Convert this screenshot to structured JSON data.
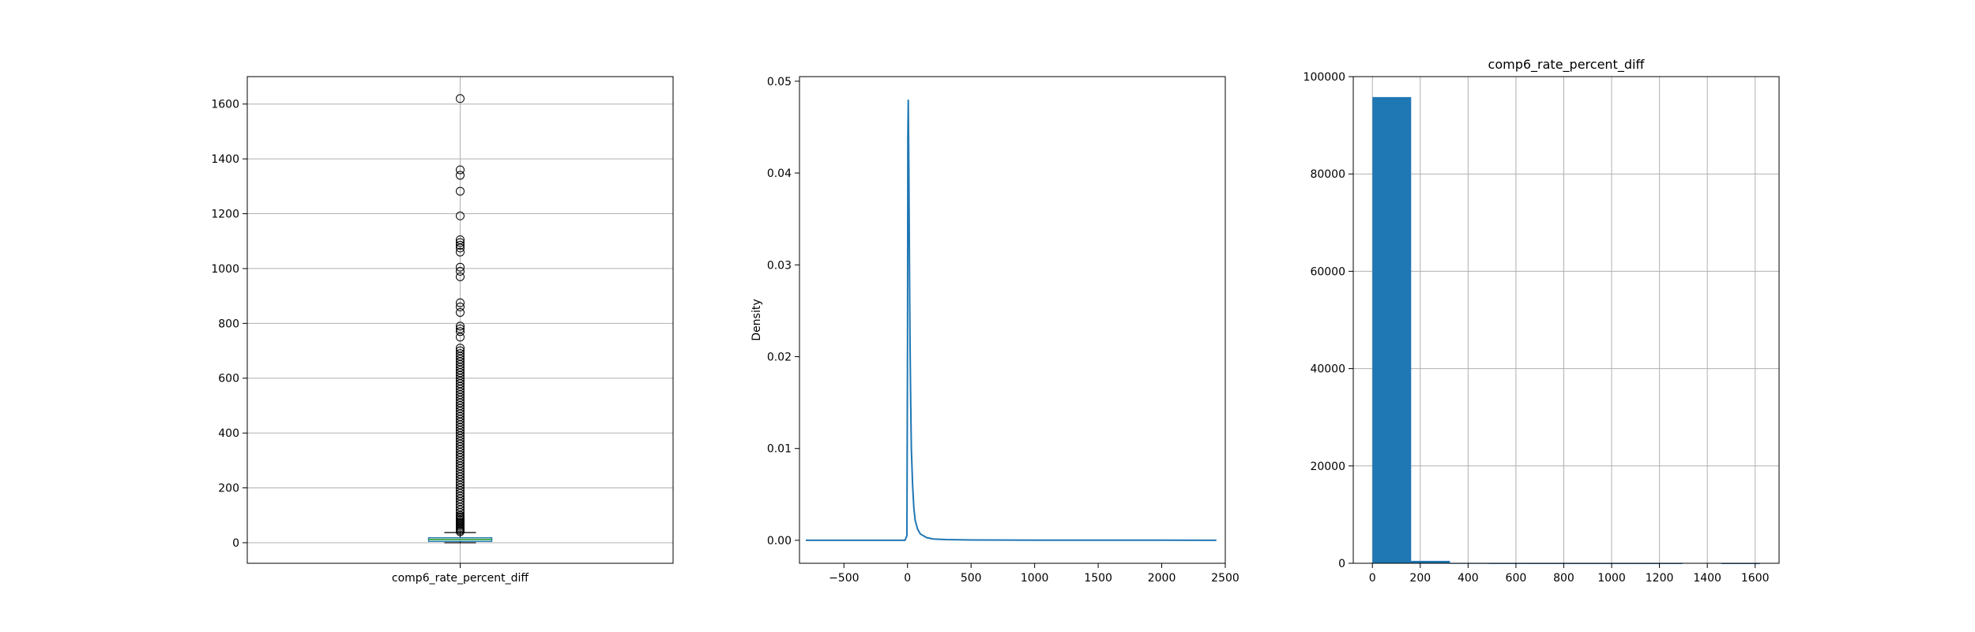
{
  "chart_data": [
    {
      "type": "box",
      "title": "",
      "xlabel": "",
      "ylabel": "",
      "categories": [
        "comp6_rate_percent_diff"
      ],
      "ylim": [
        -75,
        1700
      ],
      "yticks": [
        0,
        200,
        400,
        600,
        800,
        1000,
        1200,
        1400,
        1600
      ],
      "grid": true,
      "box": {
        "q1": 5,
        "median": 12,
        "q3": 18,
        "whisker_low": 0,
        "whisker_high": 37
      },
      "outliers": [
        1620,
        1360,
        1340,
        1282,
        1192,
        1105,
        1095,
        1085,
        1075,
        1060,
        1005,
        990,
        970,
        875,
        860,
        840,
        790,
        780,
        770,
        750,
        710,
        700,
        690,
        680,
        670,
        660,
        650,
        640,
        630,
        620,
        610,
        600,
        590,
        580,
        570,
        560,
        550,
        540,
        530,
        520,
        510,
        500,
        490,
        480,
        470,
        460,
        450,
        440,
        430,
        420,
        410,
        400,
        390,
        380,
        370,
        360,
        350,
        340,
        330,
        320,
        310,
        300,
        290,
        280,
        270,
        260,
        250,
        240,
        230,
        220,
        210,
        200,
        190,
        180,
        170,
        160,
        150,
        140,
        130,
        120,
        110,
        100,
        95,
        90,
        85,
        80,
        75,
        70,
        65,
        60,
        55,
        50,
        45,
        40
      ]
    },
    {
      "type": "line",
      "title": "",
      "xlabel": "",
      "ylabel": "Density",
      "xlim": [
        -850,
        2500
      ],
      "ylim": [
        -0.0025,
        0.0505
      ],
      "xticks": [
        -500,
        0,
        500,
        1000,
        1500,
        2000,
        2500
      ],
      "yticks": [
        0.0,
        0.01,
        0.02,
        0.03,
        0.04,
        0.05
      ],
      "ytick_labels": [
        "0.00",
        "0.01",
        "0.02",
        "0.03",
        "0.04",
        "0.05"
      ],
      "grid": false,
      "series": [
        {
          "color": "#1f77b4",
          "x": [
            -800,
            -100,
            -20,
            -5,
            0,
            3,
            6,
            10,
            15,
            20,
            25,
            30,
            40,
            50,
            60,
            80,
            100,
            150,
            200,
            300,
            500,
            1000,
            1500,
            2000,
            2430
          ],
          "y": [
            0.0,
            0.0,
            0.0,
            0.0005,
            0.022,
            0.044,
            0.048,
            0.041,
            0.03,
            0.021,
            0.015,
            0.01,
            0.006,
            0.0035,
            0.0022,
            0.0012,
            0.0007,
            0.0003,
            0.00015,
            8e-05,
            4e-05,
            2e-05,
            1e-05,
            1e-05,
            0.0
          ]
        }
      ]
    },
    {
      "type": "bar",
      "title": "comp6_rate_percent_diff",
      "xlabel": "",
      "ylabel": "",
      "xlim": [
        -80,
        1700
      ],
      "ylim": [
        0,
        100000
      ],
      "xticks": [
        0,
        200,
        400,
        600,
        800,
        1000,
        1200,
        1400,
        1600
      ],
      "yticks": [
        0,
        20000,
        40000,
        60000,
        80000,
        100000
      ],
      "grid": true,
      "color": "#1f77b4",
      "bin_edges": [
        0,
        162,
        324,
        486,
        648,
        810,
        972,
        1134,
        1296,
        1458,
        1620
      ],
      "values": [
        95800,
        500,
        40,
        12,
        5,
        4,
        3,
        1,
        0,
        1
      ]
    }
  ]
}
